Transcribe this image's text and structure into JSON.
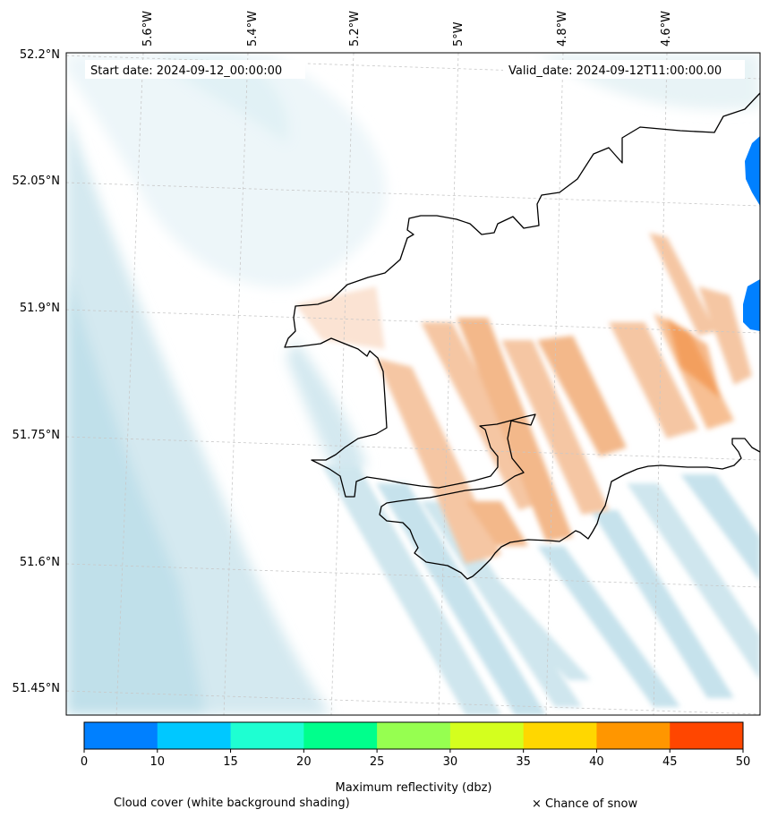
{
  "map": {
    "start_date_label": "Start date: 2024-09-12_00:00:00",
    "valid_date_label": "Valid_date: 2024-09-12T11:00:00.00",
    "longitude_labels": [
      "5.6°W",
      "5.4°W",
      "5.2°W",
      "5°W",
      "4.8°W",
      "4.6°W"
    ],
    "latitude_labels": [
      "52.2°N",
      "52.05°N",
      "51.9°N",
      "51.75°N",
      "51.6°N",
      "51.45°N"
    ],
    "colors": {
      "coastline": "#000000",
      "cloud_shading": "#add8e6",
      "reflectivity_low": "#f5b88a",
      "reflectivity_mid": "#f08a3a",
      "rain_blue": "#0080ff",
      "gridline": "#c8c8c8"
    }
  },
  "colorbar": {
    "label": "Maximum reflectivity (dbz)",
    "ticks": [
      "0",
      "10",
      "15",
      "20",
      "25",
      "30",
      "35",
      "40",
      "45",
      "50"
    ],
    "colors": [
      "#0080ff",
      "#00c8ff",
      "#1effd2",
      "#00ff8c",
      "#96ff50",
      "#d4ff1e",
      "#ffd700",
      "#ff9600",
      "#ff4600"
    ]
  },
  "legend": {
    "cloud_cover": "Cloud cover (white background shading)",
    "snow": "× Chance of snow"
  }
}
